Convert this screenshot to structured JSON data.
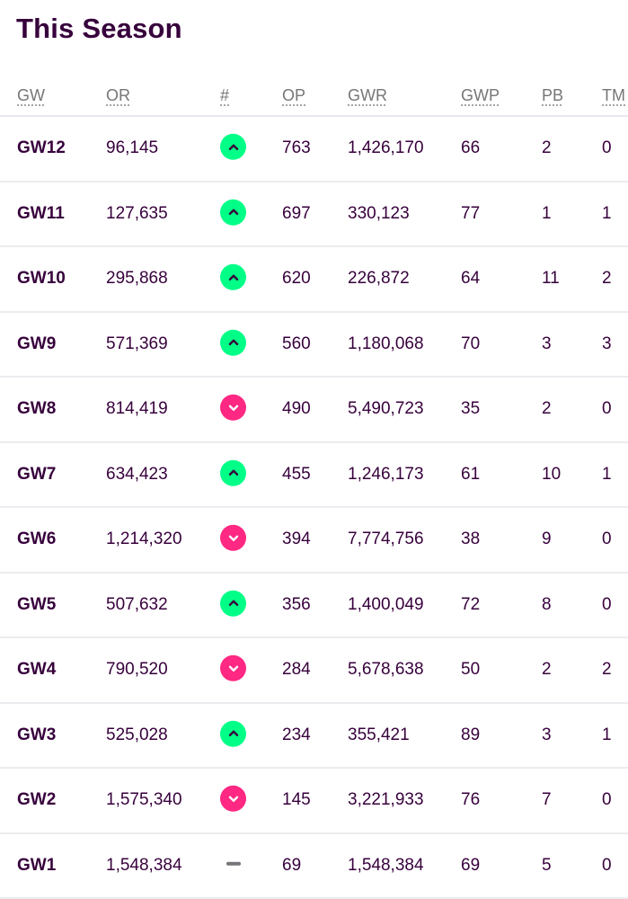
{
  "title": "This Season",
  "colors": {
    "up": "#00ff87",
    "down": "#ff2882",
    "text": "#37003c"
  },
  "headers": [
    "GW",
    "OR",
    "#",
    "OP",
    "GWR",
    "GWP",
    "PB",
    "TM"
  ],
  "rows": [
    {
      "gw": "GW12",
      "or": "96,145",
      "move": "up",
      "op": "763",
      "gwr": "1,426,170",
      "gwp": "66",
      "pb": "2",
      "tm": "0"
    },
    {
      "gw": "GW11",
      "or": "127,635",
      "move": "up",
      "op": "697",
      "gwr": "330,123",
      "gwp": "77",
      "pb": "1",
      "tm": "1"
    },
    {
      "gw": "GW10",
      "or": "295,868",
      "move": "up",
      "op": "620",
      "gwr": "226,872",
      "gwp": "64",
      "pb": "11",
      "tm": "2"
    },
    {
      "gw": "GW9",
      "or": "571,369",
      "move": "up",
      "op": "560",
      "gwr": "1,180,068",
      "gwp": "70",
      "pb": "3",
      "tm": "3"
    },
    {
      "gw": "GW8",
      "or": "814,419",
      "move": "down",
      "op": "490",
      "gwr": "5,490,723",
      "gwp": "35",
      "pb": "2",
      "tm": "0"
    },
    {
      "gw": "GW7",
      "or": "634,423",
      "move": "up",
      "op": "455",
      "gwr": "1,246,173",
      "gwp": "61",
      "pb": "10",
      "tm": "1"
    },
    {
      "gw": "GW6",
      "or": "1,214,320",
      "move": "down",
      "op": "394",
      "gwr": "7,774,756",
      "gwp": "38",
      "pb": "9",
      "tm": "0"
    },
    {
      "gw": "GW5",
      "or": "507,632",
      "move": "up",
      "op": "356",
      "gwr": "1,400,049",
      "gwp": "72",
      "pb": "8",
      "tm": "0"
    },
    {
      "gw": "GW4",
      "or": "790,520",
      "move": "down",
      "op": "284",
      "gwr": "5,678,638",
      "gwp": "50",
      "pb": "2",
      "tm": "2"
    },
    {
      "gw": "GW3",
      "or": "525,028",
      "move": "up",
      "op": "234",
      "gwr": "355,421",
      "gwp": "89",
      "pb": "3",
      "tm": "1"
    },
    {
      "gw": "GW2",
      "or": "1,575,340",
      "move": "down",
      "op": "145",
      "gwr": "3,221,933",
      "gwp": "76",
      "pb": "7",
      "tm": "0"
    },
    {
      "gw": "GW1",
      "or": "1,548,384",
      "move": "same",
      "op": "69",
      "gwr": "1,548,384",
      "gwp": "69",
      "pb": "5",
      "tm": "0"
    }
  ]
}
